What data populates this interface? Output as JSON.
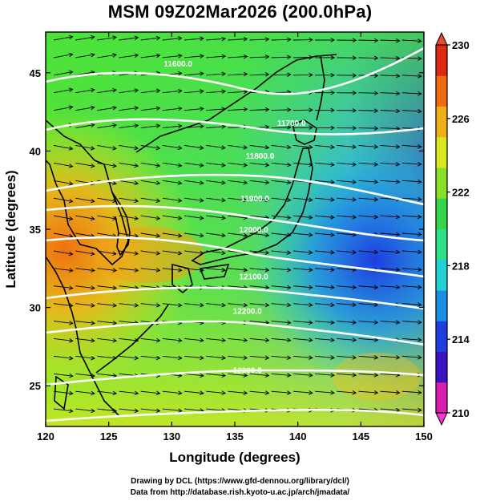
{
  "title": "MSM 09Z02Mar2026 (200.0hPa)",
  "credits": {
    "line1": "Drawing by DCL (https://www.gfd-dennou.org/library/dcl/)",
    "line2": "Data from http://database.rish.kyoto-u.ac.jp/arch/jmadata/"
  },
  "map": {
    "xlabel": "Longitude (degrees)",
    "ylabel": "Latitude  (degrees)",
    "xlim": [
      120,
      150
    ],
    "ylim": [
      22.4,
      47.6
    ],
    "xticks": [
      120,
      125,
      130,
      135,
      140,
      145,
      150
    ],
    "yticks": [
      25,
      30,
      35,
      40,
      45
    ],
    "contour_labels": [
      {
        "text": "11600.0",
        "lon": 130.5,
        "lat": 45.4
      },
      {
        "text": "11700.0",
        "lon": 139.5,
        "lat": 41.6
      },
      {
        "text": "11800.0",
        "lon": 137.0,
        "lat": 39.5
      },
      {
        "text": "11900.0",
        "lon": 136.6,
        "lat": 36.8
      },
      {
        "text": "12000.0",
        "lon": 136.5,
        "lat": 34.8
      },
      {
        "text": "12100.0",
        "lon": 136.5,
        "lat": 31.8
      },
      {
        "text": "12200.0",
        "lon": 136.0,
        "lat": 29.6
      },
      {
        "text": "12300.0",
        "lon": 136.0,
        "lat": 25.8
      }
    ]
  },
  "colorbar": {
    "ticks": [
      "230",
      "226",
      "222",
      "218",
      "214",
      "210"
    ],
    "min": 210,
    "max": 230,
    "colors": [
      "#d61fb0",
      "#3b12c0",
      "#1e3fe0",
      "#1a8fe6",
      "#22d0d6",
      "#2ee08a",
      "#35d64a",
      "#8adf2a",
      "#d8e81e",
      "#f2b018",
      "#f06a12",
      "#dd2a10"
    ]
  }
}
